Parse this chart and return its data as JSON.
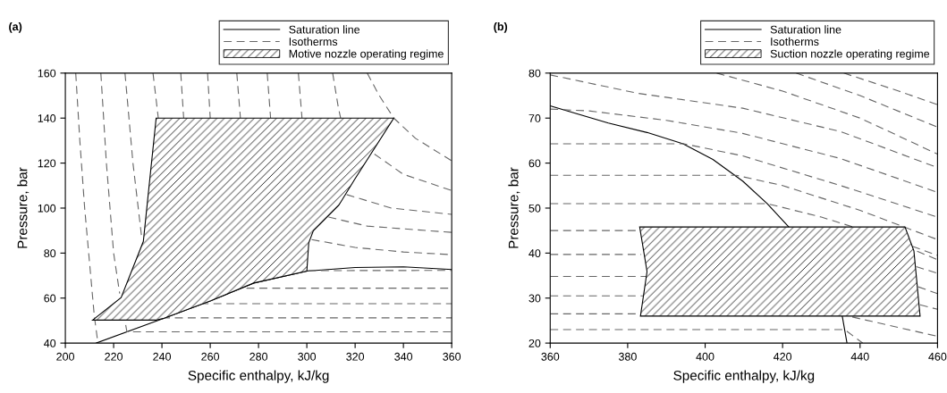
{
  "chart_data": [
    {
      "type": "line",
      "title": "(a)",
      "xlabel": "Specific enthalpy, kJ/kg",
      "ylabel": "Pressure, bar",
      "xlim": [
        200,
        360
      ],
      "ylim": [
        40,
        160
      ],
      "xticks": [
        200,
        220,
        240,
        260,
        280,
        300,
        320,
        340,
        360
      ],
      "yticks": [
        40,
        60,
        80,
        100,
        120,
        140,
        160
      ],
      "grid": false,
      "legend": "top right",
      "line_style": "dashed",
      "marker": "none",
      "series": [
        {
          "name": "Saturation line",
          "line_style": "solid",
          "color": "#000000",
          "x": [
            212.8,
            240.4,
            260.2,
            278,
            300,
            320,
            340,
            360
          ],
          "values": [
            40,
            50.9,
            58.8,
            66.7,
            72,
            73.6,
            73.9,
            72.7
          ]
        },
        {
          "name": "Isotherms",
          "color": "#666666",
          "x": [
            204.3,
            206,
            208,
            210.5,
            212,
            213.5
          ],
          "values": [
            160,
            130,
            100,
            70,
            52,
            40
          ]
        },
        {
          "color": "#666666",
          "x": [
            214.7,
            217,
            220,
            222.5,
            224,
            225,
            225.5,
            360
          ],
          "values": [
            160,
            120,
            80,
            62,
            null,
            48,
            45,
            45
          ]
        },
        {
          "color": "#666666",
          "x": [
            224.7,
            228,
            231.5,
            236,
            240,
            360
          ],
          "values": [
            160,
            120,
            88,
            null,
            51.2,
            51.2
          ]
        },
        {
          "color": "#666666",
          "x": [
            236.3,
            238.5,
            245,
            256,
            360
          ],
          "values": [
            160,
            140,
            null,
            57.5,
            57.5
          ]
        },
        {
          "color": "#666666",
          "x": [
            247.8,
            249,
            260,
            275,
            360
          ],
          "values": [
            160,
            140,
            null,
            64.4,
            64.4
          ]
        },
        {
          "color": "#666666",
          "x": [
            258.9,
            260,
            280,
            300.5,
            360
          ],
          "values": [
            160,
            140,
            null,
            72.2,
            72.3
          ]
        },
        {
          "color": "#666666",
          "x": [
            271,
            272.5,
            290,
            302,
            320,
            340,
            360
          ],
          "values": [
            160,
            140,
            null,
            86,
            82.5,
            80.5,
            79.3
          ]
        },
        {
          "color": "#666666",
          "x": [
            283.6,
            285,
            300,
            309,
            325,
            360
          ],
          "values": [
            160,
            140,
            null,
            96,
            92,
            89.2
          ]
        },
        {
          "color": "#666666",
          "x": [
            296.5,
            298,
            310,
            316.5,
            335,
            360
          ],
          "values": [
            160,
            140,
            null,
            106,
            100,
            97.2
          ]
        },
        {
          "color": "#666666",
          "x": [
            310.7,
            313,
            314,
            320,
            328,
            340,
            360
          ],
          "values": [
            160,
            145,
            140,
            null,
            124,
            115,
            107.8
          ]
        },
        {
          "color": "#666666",
          "x": [
            325,
            330,
            336,
            345,
            360
          ],
          "values": [
            160,
            150,
            140,
            131,
            121
          ]
        },
        {
          "name": "Motive nozzle operating regime",
          "type": "area",
          "color": "#000000",
          "x": [
            237.6,
            232.3,
            223.1,
            211.3,
            237.5,
            240.4,
            260.2,
            278,
            300,
            300.8,
            302.7,
            313.2,
            320,
            336
          ],
          "values": [
            140,
            85.2,
            60.2,
            50.2,
            50.2,
            50.9,
            58.8,
            66.7,
            72,
            84.6,
            89.9,
            101.2,
            113.1,
            140
          ]
        }
      ]
    },
    {
      "type": "line",
      "title": "(b)",
      "xlabel": "Specific enthalpy, kJ/kg",
      "ylabel": "Pressure, bar",
      "xlim": [
        360,
        460
      ],
      "ylim": [
        20,
        80
      ],
      "xticks": [
        360,
        380,
        400,
        420,
        440,
        460
      ],
      "yticks": [
        20,
        30,
        40,
        50,
        60,
        70,
        80
      ],
      "grid": false,
      "legend": "top right",
      "line_style": "dashed",
      "marker": "none",
      "series": [
        {
          "name": "Saturation line",
          "line_style": "solid",
          "color": "#000000",
          "x": [
            360,
            375,
            385,
            394.3,
            402,
            409.7,
            416,
            421.6,
            428,
            435.4,
            436.6
          ],
          "values": [
            72.7,
            68.9,
            66.8,
            64.3,
            60.8,
            56,
            51,
            45.8,
            null,
            26,
            20.1
          ]
        },
        {
          "name": "Isotherms",
          "color": "#666666",
          "x": [
            403,
            420,
            440,
            460
          ],
          "values": [
            80,
            76,
            70,
            62
          ]
        },
        {
          "color": "#666666",
          "x": [
            423.5,
            440,
            460
          ],
          "values": [
            80,
            75,
            68
          ]
        },
        {
          "color": "#666666",
          "x": [
            435.8,
            450,
            460
          ],
          "values": [
            80,
            76,
            73
          ]
        },
        {
          "color": "#666666",
          "x": [
            360,
            382.7,
            409.7,
            435,
            460
          ],
          "values": [
            79.6,
            75.5,
            72.2,
            67,
            59
          ]
        },
        {
          "color": "#666666",
          "x": [
            360,
            370,
            390,
            409.7,
            435,
            460
          ],
          "values": [
            72,
            71.6,
            69.5,
            66.6,
            61,
            53.5
          ]
        },
        {
          "color": "#666666",
          "x": [
            360,
            394.5,
            409.7,
            435,
            460
          ],
          "values": [
            64.3,
            64.3,
            61.6,
            55,
            48
          ]
        },
        {
          "color": "#666666",
          "x": [
            360,
            408,
            420,
            440,
            460
          ],
          "values": [
            57.3,
            57.3,
            55,
            49.5,
            43
          ]
        },
        {
          "color": "#666666",
          "x": [
            360,
            416,
            430,
            445,
            460
          ],
          "values": [
            51,
            51,
            48,
            44,
            38.5
          ]
        },
        {
          "color": "#666666",
          "x": [
            360,
            383,
            420,
            453.5,
            460
          ],
          "values": [
            45,
            45,
            null,
            41.5,
            39.5
          ]
        },
        {
          "color": "#666666",
          "x": [
            360,
            383.5,
            420,
            454.5,
            460
          ],
          "values": [
            39.7,
            39.7,
            null,
            37,
            35.5
          ]
        },
        {
          "color": "#666666",
          "x": [
            360,
            385,
            420,
            455,
            460
          ],
          "values": [
            34.8,
            34.8,
            null,
            32.5,
            31
          ]
        },
        {
          "color": "#666666",
          "x": [
            360,
            384,
            420,
            455.5,
            460
          ],
          "values": [
            30.5,
            30.5,
            null,
            28.5,
            27.5
          ]
        },
        {
          "color": "#666666",
          "x": [
            360,
            383.3,
            420,
            438,
            460
          ],
          "values": [
            26.5,
            26.5,
            null,
            25.8,
            21.5
          ]
        },
        {
          "color": "#666666",
          "x": [
            360,
            436,
            440.7
          ],
          "values": [
            23,
            23,
            20
          ]
        },
        {
          "name": "Suction nozzle operating regime",
          "type": "area",
          "color": "#000000",
          "x": [
            383.1,
            385,
            383.3,
            455.5,
            453.9,
            451.6
          ],
          "values": [
            45.8,
            35.9,
            26,
            26,
            40.5,
            45.8
          ]
        }
      ]
    }
  ]
}
